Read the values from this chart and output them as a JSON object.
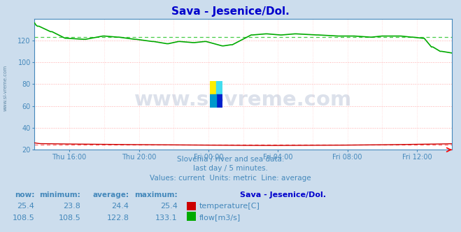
{
  "title": "Sava - Jesenice/Dol.",
  "bg_color": "#ccdded",
  "plot_bg_color": "#ffffff",
  "grid_color_h": "#ffaaaa",
  "grid_color_v": "#ffcccc",
  "title_color": "#0000cc",
  "axis_color": "#4488bb",
  "text_color": "#4488bb",
  "temp_color": "#cc0000",
  "flow_color": "#00aa00",
  "temp_avg_color": "#ff6666",
  "flow_avg_color": "#44cc44",
  "temp_avg": 24.4,
  "flow_avg": 122.8,
  "ylim_min": 20,
  "ylim_max": 140,
  "yticks": [
    20,
    40,
    60,
    80,
    100,
    120
  ],
  "x_tick_labels": [
    "Thu 16:00",
    "Thu 20:00",
    "Fri 00:00",
    "Fri 04:00",
    "Fri 08:00",
    "Fri 12:00"
  ],
  "subtitle1": "Slovenia / river and sea data.",
  "subtitle2": "last day / 5 minutes.",
  "subtitle3": "Values: current  Units: metric  Line: average",
  "legend_title": "Sava - Jesenice/Dol.",
  "col_headers": [
    "now:",
    "minimum:",
    "average:",
    "maximum:"
  ],
  "now_temp": 25.4,
  "min_temp": 23.8,
  "avg_temp": 24.4,
  "max_temp": 25.4,
  "now_flow": 108.5,
  "min_flow": 108.5,
  "avg_flow": 122.8,
  "max_flow": 133.1,
  "watermark_text": "www.si-vreme.com",
  "watermark_color": "#1a3a7a",
  "watermark_alpha": 0.15,
  "n_points": 288
}
